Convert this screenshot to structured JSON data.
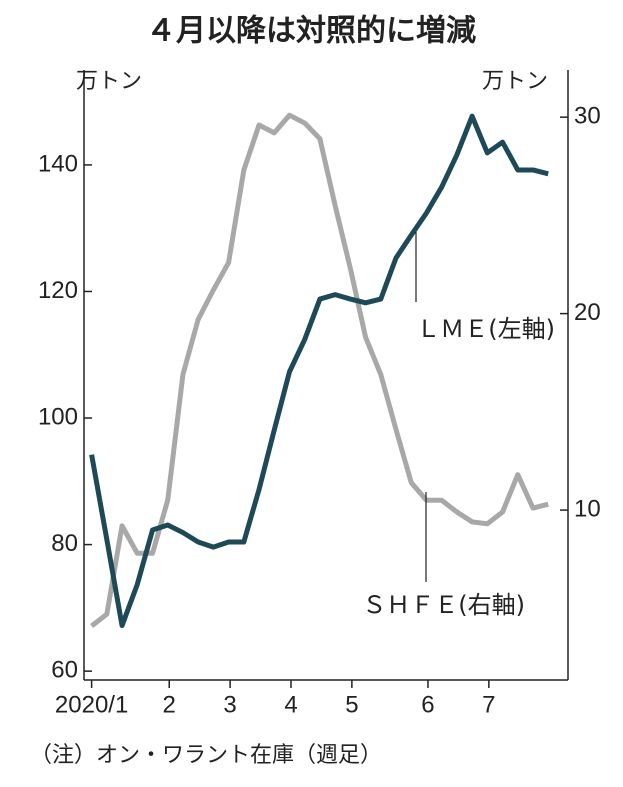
{
  "chart_data": {
    "type": "line",
    "title": "４月以降は対照的に増減",
    "ylabel": "万トン",
    "y2label": "万トン",
    "note": "（注）オン・ワラント在庫（週足）",
    "x": [
      0,
      1,
      2,
      3,
      4,
      5,
      6,
      7,
      8,
      9,
      10,
      11,
      12,
      13,
      14,
      15,
      16,
      17,
      18,
      19,
      20,
      21,
      22,
      23,
      24,
      25,
      26,
      27,
      28,
      29,
      30
    ],
    "xlim": [
      -0.5,
      31.3
    ],
    "xticks": [
      {
        "value": 0,
        "label": "2020/1"
      },
      {
        "value": 5.1,
        "label": "2"
      },
      {
        "value": 9.1,
        "label": "3"
      },
      {
        "value": 13.1,
        "label": "4"
      },
      {
        "value": 17.1,
        "label": "5"
      },
      {
        "value": 22.1,
        "label": "6"
      },
      {
        "value": 26.1,
        "label": "7"
      }
    ],
    "ylim": [
      58.6,
      155
    ],
    "yticks": [
      60,
      80,
      100,
      120,
      140
    ],
    "y2lim": [
      1.35,
      32.4
    ],
    "y2ticks": [
      10,
      20,
      30
    ],
    "series": [
      {
        "name": "ＬＭＥ(左軸)",
        "color": "#1e4a57",
        "values": [
          94.2,
          80.8,
          67.2,
          73.7,
          82.3,
          83.1,
          81.9,
          80.4,
          79.6,
          80.4,
          80.4,
          88.7,
          98.1,
          107.3,
          112.4,
          118.8,
          119.5,
          118.8,
          118.2,
          118.8,
          125.3,
          128.9,
          132.4,
          136.5,
          141.6,
          147.7,
          141.9,
          143.6,
          139.2,
          139.2,
          138.6
        ]
      },
      {
        "name": "ＳＨＦＥ(右軸)",
        "color": "#a8a8a8",
        "axis": "y2",
        "values": [
          4.1,
          4.7,
          9.2,
          7.8,
          7.8,
          10.5,
          16.9,
          19.7,
          21.2,
          22.6,
          27.3,
          29.6,
          29.2,
          30.1,
          29.7,
          28.9,
          25.5,
          22.3,
          18.8,
          16.9,
          14.1,
          11.4,
          10.5,
          10.5,
          9.9,
          9.4,
          9.3,
          9.9,
          11.8,
          10.1,
          10.3
        ]
      }
    ]
  }
}
